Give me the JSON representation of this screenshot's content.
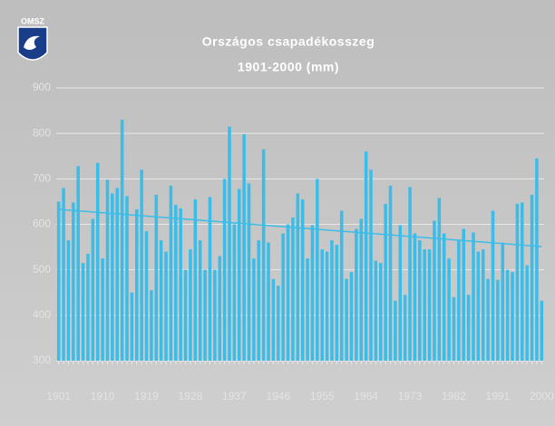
{
  "logo_text": "OMSZ",
  "chart_data": {
    "type": "bar",
    "title": "Országos csapadékosszeg",
    "subtitle": "1901-2000 (mm)",
    "categories": [
      "1901",
      null,
      null,
      null,
      null,
      null,
      null,
      null,
      null,
      "1910",
      null,
      null,
      null,
      null,
      null,
      null,
      null,
      null,
      "1919",
      null,
      null,
      null,
      null,
      null,
      null,
      null,
      null,
      "1928",
      null,
      null,
      null,
      null,
      null,
      null,
      null,
      null,
      "1937",
      null,
      null,
      null,
      null,
      null,
      null,
      null,
      null,
      "1946",
      null,
      null,
      null,
      null,
      null,
      null,
      null,
      null,
      "1955",
      null,
      null,
      null,
      null,
      null,
      null,
      null,
      null,
      "1964",
      null,
      null,
      null,
      null,
      null,
      null,
      null,
      null,
      "1973",
      null,
      null,
      null,
      null,
      null,
      null,
      null,
      null,
      "1982",
      null,
      null,
      null,
      null,
      null,
      null,
      null,
      null,
      "1991",
      null,
      null,
      null,
      null,
      null,
      null,
      null,
      null,
      "2000"
    ],
    "values": [
      650,
      680,
      565,
      648,
      728,
      515,
      535,
      612,
      735,
      525,
      698,
      668,
      680,
      830,
      662,
      450,
      633,
      720,
      585,
      455,
      665,
      565,
      540,
      685,
      643,
      635,
      500,
      545,
      655,
      565,
      500,
      660,
      500,
      530,
      700,
      815,
      600,
      678,
      798,
      690,
      525,
      565,
      765,
      560,
      480,
      465,
      580,
      600,
      615,
      668,
      655,
      525,
      598,
      700,
      545,
      540,
      565,
      555,
      630,
      480,
      495,
      590,
      612,
      760,
      720,
      520,
      515,
      645,
      685,
      432,
      598,
      445,
      682,
      580,
      565,
      545,
      545,
      608,
      658,
      580,
      525,
      440,
      565,
      590,
      445,
      582,
      540,
      545,
      480,
      630,
      478,
      560,
      500,
      495,
      645,
      648,
      510,
      665,
      745,
      432
    ],
    "color": "#3cbde8",
    "trend": {
      "color": "#3cbde8",
      "values": [
        633,
        551
      ]
    },
    "ylim": [
      300,
      900
    ],
    "yticks": [
      300,
      400,
      500,
      600,
      700,
      800,
      900
    ],
    "grid": true
  }
}
